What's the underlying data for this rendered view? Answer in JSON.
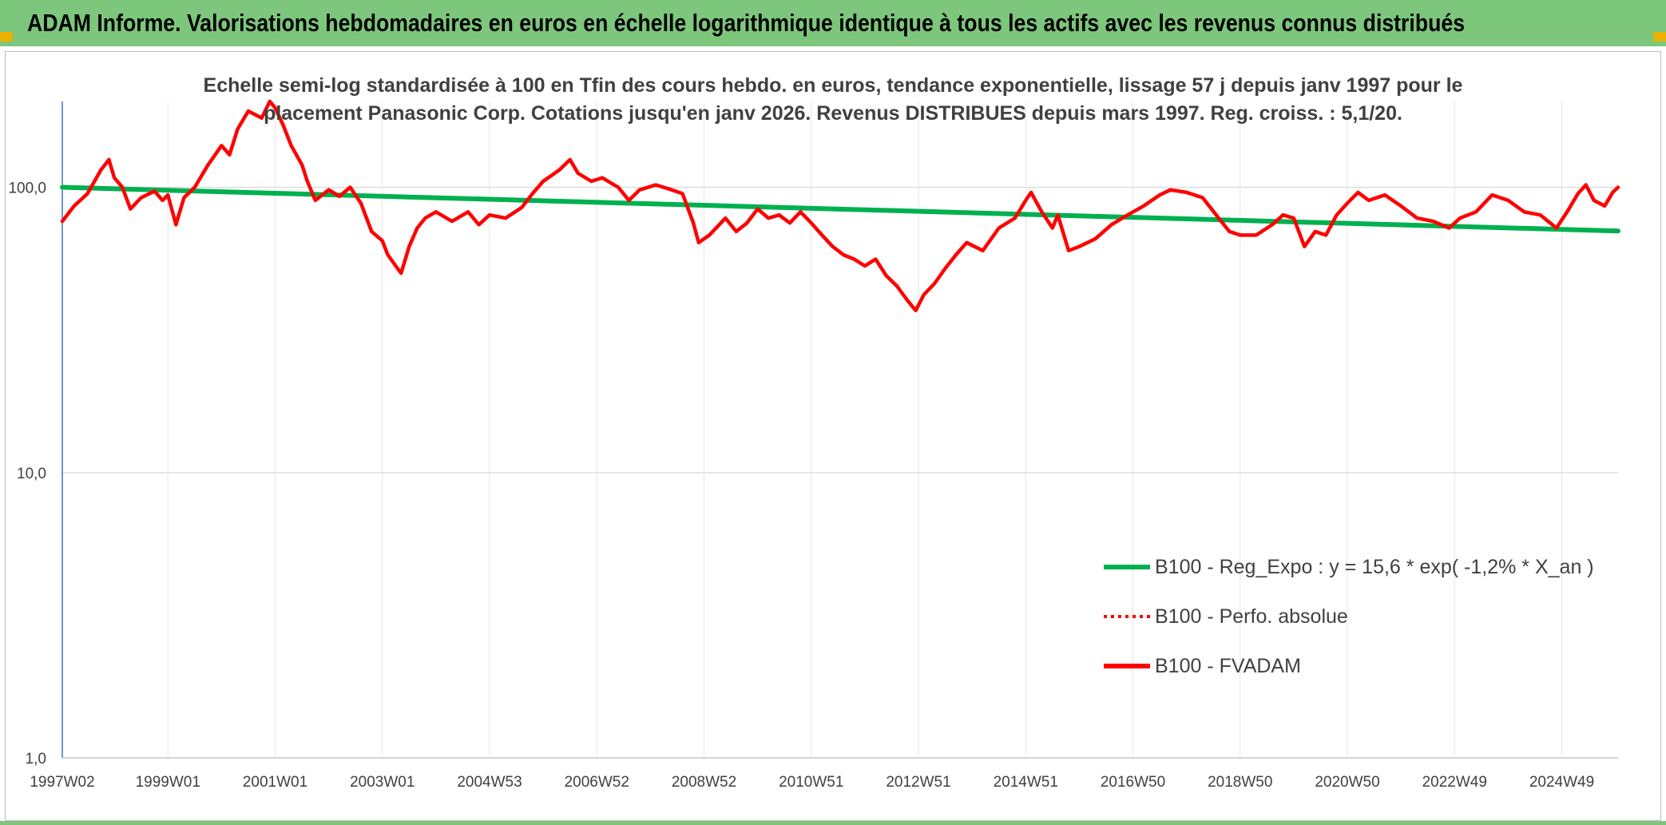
{
  "header": {
    "title": "ADAM Informe. Valorisations hebdomadaires en euros en échelle logarithmique identique à tous les actifs avec les revenus connus distribués"
  },
  "colors": {
    "header_bg": "#7cc77c",
    "accent_corner": "#e9b300",
    "trend_line": "#00b050",
    "series_line": "#ff0000"
  },
  "chart_data": {
    "type": "line",
    "title_lines": [
      "Echelle semi-log standardisée à 100 en Tfin des cours hebdo. en euros, tendance exponentielle, lissage 57 j depuis janv 1997 pour le",
      "placement Panasonic Corp. Cotations jusqu'en janv 2026. Revenus DISTRIBUES depuis mars 1997. Reg. croiss. : 5,1/20."
    ],
    "y_scale": "log",
    "ylim": [
      1,
      200
    ],
    "y_ticks": [
      {
        "value": 1,
        "label": "1,0"
      },
      {
        "value": 10,
        "label": "10,0"
      },
      {
        "value": 100,
        "label": "100,0"
      }
    ],
    "xlim": [
      1997.03,
      2026.05
    ],
    "x_ticks": [
      {
        "value": 1997.03,
        "label": "1997W02"
      },
      {
        "value": 1999.0,
        "label": "1999W01"
      },
      {
        "value": 2001.0,
        "label": "2001W01"
      },
      {
        "value": 2003.0,
        "label": "2003W01"
      },
      {
        "value": 2005.0,
        "label": "2004W53"
      },
      {
        "value": 2007.0,
        "label": "2006W52"
      },
      {
        "value": 2009.0,
        "label": "2008W52"
      },
      {
        "value": 2011.0,
        "label": "2010W51"
      },
      {
        "value": 2013.0,
        "label": "2012W51"
      },
      {
        "value": 2015.0,
        "label": "2014W51"
      },
      {
        "value": 2017.0,
        "label": "2016W50"
      },
      {
        "value": 2019.0,
        "label": "2018W50"
      },
      {
        "value": 2021.0,
        "label": "2020W50"
      },
      {
        "value": 2023.0,
        "label": "2022W49"
      },
      {
        "value": 2025.0,
        "label": "2024W49"
      }
    ],
    "grid": true,
    "legend_position": "bottom-right",
    "series": [
      {
        "name": "B100 - Reg_Expo : y = 15,6 * exp( -1,2% *  X_an )",
        "color": "#00b050",
        "style": "solid",
        "points": [
          [
            1997.03,
            100.0
          ],
          [
            2026.05,
            70.3
          ]
        ]
      },
      {
        "name": "B100 - Perfo. absolue",
        "color": "#ff0000",
        "style": "dotted",
        "points": []
      },
      {
        "name": "B100 - FVADAM",
        "color": "#ff0000",
        "style": "solid",
        "points": [
          [
            1997.03,
            76
          ],
          [
            1997.25,
            86
          ],
          [
            1997.5,
            95
          ],
          [
            1997.75,
            115
          ],
          [
            1997.9,
            125
          ],
          [
            1998.0,
            108
          ],
          [
            1998.15,
            100
          ],
          [
            1998.3,
            84
          ],
          [
            1998.5,
            92
          ],
          [
            1998.75,
            97
          ],
          [
            1998.9,
            90
          ],
          [
            1999.0,
            94
          ],
          [
            1999.15,
            74
          ],
          [
            1999.3,
            92
          ],
          [
            1999.5,
            100
          ],
          [
            1999.75,
            120
          ],
          [
            2000.0,
            140
          ],
          [
            2000.15,
            130
          ],
          [
            2000.3,
            160
          ],
          [
            2000.5,
            185
          ],
          [
            2000.75,
            175
          ],
          [
            2000.9,
            200
          ],
          [
            2001.0,
            190
          ],
          [
            2001.15,
            165
          ],
          [
            2001.3,
            140
          ],
          [
            2001.5,
            120
          ],
          [
            2001.6,
            105
          ],
          [
            2001.75,
            90
          ],
          [
            2002.0,
            98
          ],
          [
            2002.2,
            93
          ],
          [
            2002.4,
            100
          ],
          [
            2002.6,
            88
          ],
          [
            2002.8,
            70
          ],
          [
            2003.0,
            65
          ],
          [
            2003.1,
            58
          ],
          [
            2003.25,
            53
          ],
          [
            2003.35,
            50
          ],
          [
            2003.5,
            62
          ],
          [
            2003.65,
            72
          ],
          [
            2003.8,
            78
          ],
          [
            2004.0,
            82
          ],
          [
            2004.3,
            76
          ],
          [
            2004.6,
            82
          ],
          [
            2004.8,
            74
          ],
          [
            2005.0,
            80
          ],
          [
            2005.3,
            78
          ],
          [
            2005.6,
            85
          ],
          [
            2005.8,
            95
          ],
          [
            2006.0,
            105
          ],
          [
            2006.3,
            115
          ],
          [
            2006.5,
            125
          ],
          [
            2006.65,
            112
          ],
          [
            2006.9,
            105
          ],
          [
            2007.1,
            108
          ],
          [
            2007.4,
            100
          ],
          [
            2007.6,
            90
          ],
          [
            2007.8,
            98
          ],
          [
            2008.1,
            102
          ],
          [
            2008.4,
            98
          ],
          [
            2008.6,
            95
          ],
          [
            2008.8,
            75
          ],
          [
            2008.9,
            64
          ],
          [
            2009.1,
            68
          ],
          [
            2009.4,
            78
          ],
          [
            2009.6,
            70
          ],
          [
            2009.8,
            75
          ],
          [
            2010.0,
            84
          ],
          [
            2010.2,
            78
          ],
          [
            2010.4,
            80
          ],
          [
            2010.6,
            75
          ],
          [
            2010.8,
            82
          ],
          [
            2011.0,
            75
          ],
          [
            2011.2,
            68
          ],
          [
            2011.4,
            62
          ],
          [
            2011.6,
            58
          ],
          [
            2011.8,
            56
          ],
          [
            2012.0,
            53
          ],
          [
            2012.2,
            56
          ],
          [
            2012.4,
            49
          ],
          [
            2012.6,
            45
          ],
          [
            2012.8,
            40
          ],
          [
            2012.95,
            37
          ],
          [
            2013.1,
            42
          ],
          [
            2013.3,
            46
          ],
          [
            2013.5,
            52
          ],
          [
            2013.7,
            58
          ],
          [
            2013.9,
            64
          ],
          [
            2014.2,
            60
          ],
          [
            2014.5,
            72
          ],
          [
            2014.8,
            78
          ],
          [
            2015.0,
            90
          ],
          [
            2015.1,
            96
          ],
          [
            2015.3,
            82
          ],
          [
            2015.5,
            72
          ],
          [
            2015.6,
            80
          ],
          [
            2015.8,
            60
          ],
          [
            2016.0,
            62
          ],
          [
            2016.3,
            66
          ],
          [
            2016.6,
            74
          ],
          [
            2016.9,
            80
          ],
          [
            2017.2,
            86
          ],
          [
            2017.5,
            94
          ],
          [
            2017.7,
            98
          ],
          [
            2018.0,
            96
          ],
          [
            2018.3,
            92
          ],
          [
            2018.6,
            78
          ],
          [
            2018.8,
            70
          ],
          [
            2019.0,
            68
          ],
          [
            2019.3,
            68
          ],
          [
            2019.6,
            74
          ],
          [
            2019.8,
            80
          ],
          [
            2020.0,
            78
          ],
          [
            2020.2,
            62
          ],
          [
            2020.4,
            70
          ],
          [
            2020.6,
            68
          ],
          [
            2020.8,
            80
          ],
          [
            2021.0,
            88
          ],
          [
            2021.2,
            96
          ],
          [
            2021.4,
            90
          ],
          [
            2021.7,
            94
          ],
          [
            2022.0,
            86
          ],
          [
            2022.3,
            78
          ],
          [
            2022.6,
            76
          ],
          [
            2022.9,
            72
          ],
          [
            2023.1,
            78
          ],
          [
            2023.4,
            82
          ],
          [
            2023.7,
            94
          ],
          [
            2024.0,
            90
          ],
          [
            2024.3,
            82
          ],
          [
            2024.6,
            80
          ],
          [
            2024.9,
            72
          ],
          [
            2025.1,
            82
          ],
          [
            2025.3,
            95
          ],
          [
            2025.45,
            102
          ],
          [
            2025.6,
            90
          ],
          [
            2025.8,
            86
          ],
          [
            2025.95,
            96
          ],
          [
            2026.05,
            100
          ]
        ]
      }
    ]
  }
}
